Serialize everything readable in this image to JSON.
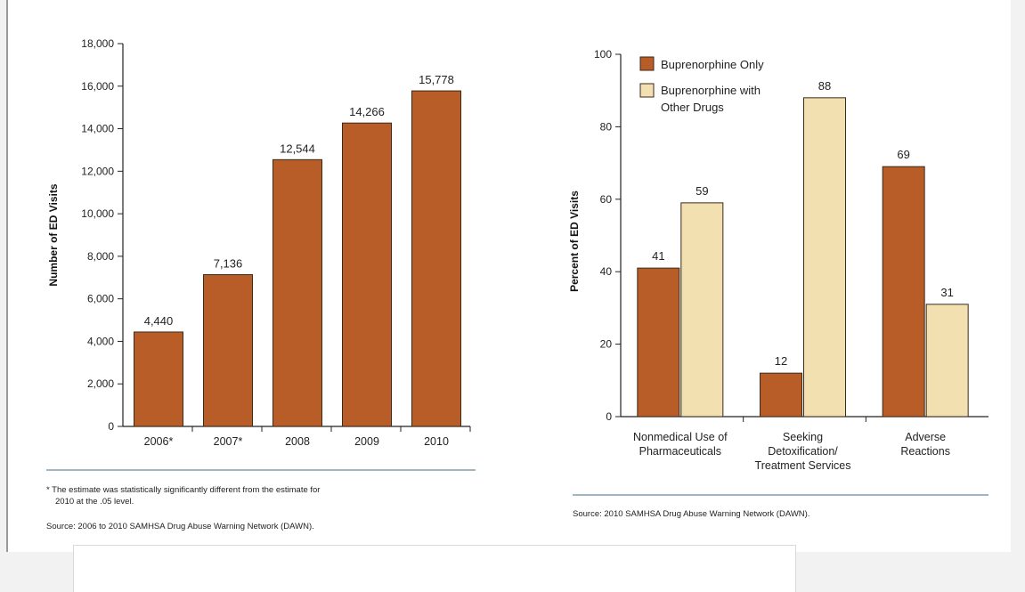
{
  "colors": {
    "only": "#b85c28",
    "with_other": "#f2e0b0",
    "bar_stroke": "#3a2a1a",
    "rule": "#9fb6c4"
  },
  "left_notes": {
    "footnote_line1": "* The estimate was statistically significantly different from the estimate for",
    "footnote_line2": "2010 at the .05 level.",
    "source": "Source: 2006 to 2010 SAMHSA Drug Abuse Warning Network (DAWN)."
  },
  "right_notes": {
    "source": "Source: 2010 SAMHSA Drug Abuse Warning Network (DAWN)."
  },
  "chart_data": [
    {
      "type": "bar",
      "categories": [
        "2006*",
        "2007*",
        "2008",
        "2009",
        "2010"
      ],
      "values": [
        4440,
        7136,
        12544,
        14266,
        15778
      ],
      "value_labels": [
        "4,440",
        "7,136",
        "12,544",
        "14,266",
        "15,778"
      ],
      "ylabel": "Number of ED Visits",
      "xlabel": "",
      "ylim": [
        0,
        18000
      ],
      "yticks": [
        0,
        2000,
        4000,
        6000,
        8000,
        10000,
        12000,
        14000,
        16000,
        18000
      ],
      "ytick_labels": [
        "0",
        "2,000",
        "4,000",
        "6,000",
        "8,000",
        "10,000",
        "12,000",
        "14,000",
        "16,000",
        "18,000"
      ],
      "grid": false
    },
    {
      "type": "bar",
      "categories": [
        [
          "Nonmedical Use of",
          "Pharmaceuticals"
        ],
        [
          "Seeking",
          "Detoxification/",
          "Treatment Services"
        ],
        [
          "Adverse",
          "Reactions"
        ]
      ],
      "series": [
        {
          "name": "Buprenorphine Only",
          "values": [
            41,
            12,
            69
          ]
        },
        {
          "name_lines": [
            "Buprenorphine with",
            "Other Drugs"
          ],
          "values": [
            59,
            88,
            31
          ]
        }
      ],
      "ylabel": "Percent of ED Visits",
      "xlabel": "",
      "ylim": [
        0,
        100
      ],
      "yticks": [
        0,
        20,
        40,
        60,
        80,
        100
      ],
      "legend": "top-left",
      "grid": false
    }
  ]
}
